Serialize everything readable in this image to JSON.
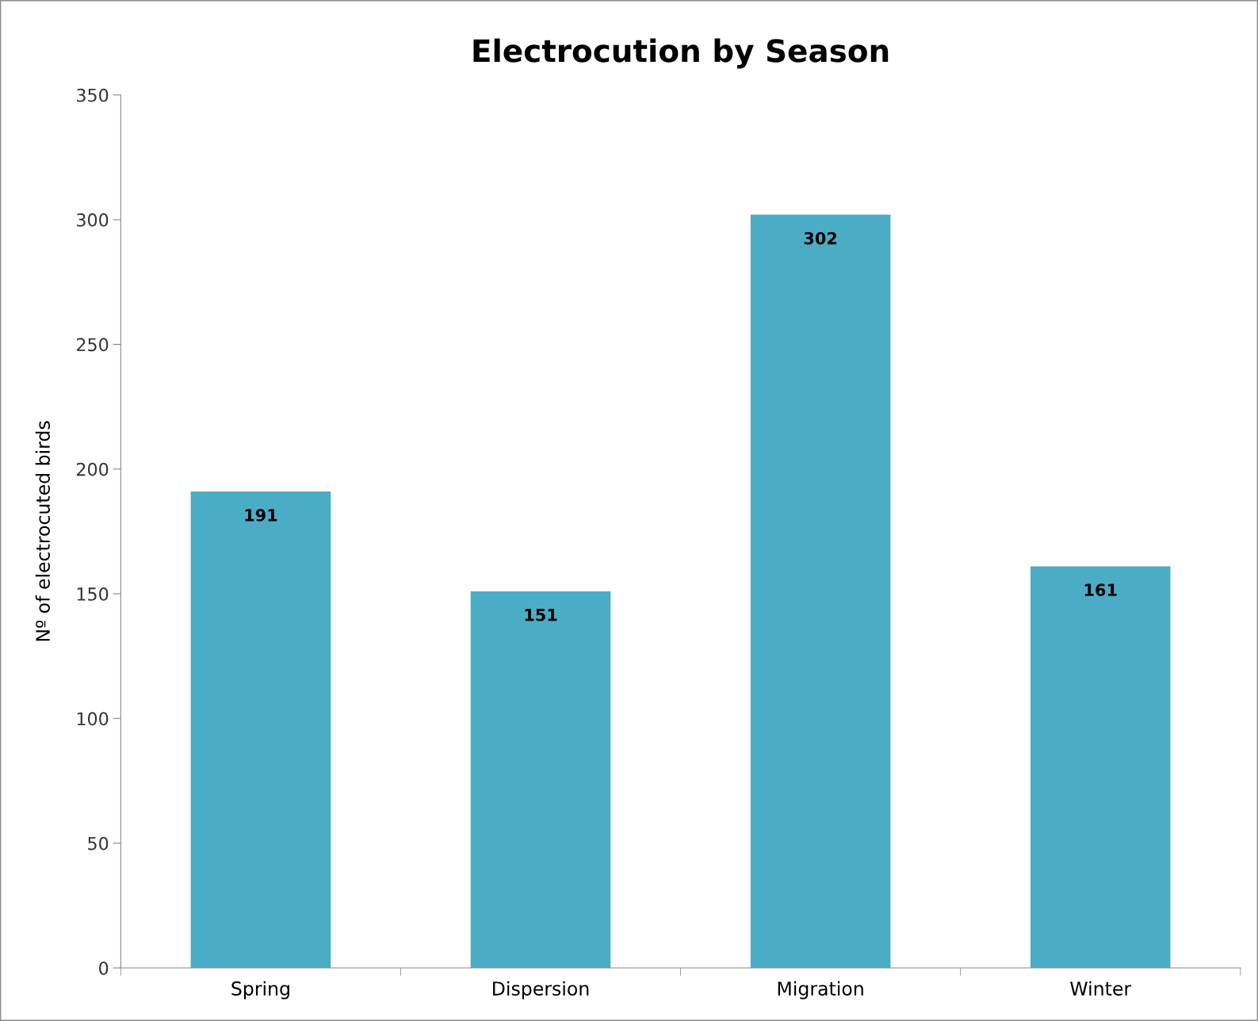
{
  "chart_data": {
    "type": "bar",
    "title": "Electrocution by Season",
    "ylabel": "Nº of electrocuted birds",
    "categories": [
      "Spring",
      "Dispersion",
      "Migration",
      "Winter"
    ],
    "values": [
      191,
      151,
      302,
      161
    ],
    "color": "#4bacc6",
    "ylim": [
      0,
      350
    ],
    "yticks": [
      0,
      50,
      100,
      150,
      200,
      250,
      300,
      350
    ],
    "grid": false,
    "data_labels": true
  }
}
